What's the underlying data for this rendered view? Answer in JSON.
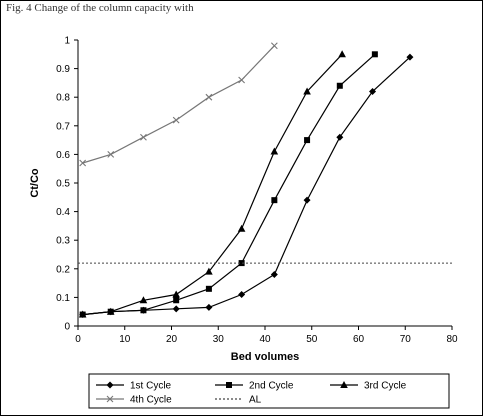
{
  "caption": "Fig. 4 Change of the column capacity with",
  "chart_data": {
    "type": "line",
    "xlabel": "Bed volumes",
    "ylabel": "Ct/Co",
    "xlim": [
      0,
      80
    ],
    "ylim": [
      0,
      1
    ],
    "x_ticks": [
      0,
      10,
      20,
      30,
      40,
      50,
      60,
      70,
      80
    ],
    "y_ticks": [
      0,
      0.1,
      0.2,
      0.3,
      0.4,
      0.5,
      0.6,
      0.7,
      0.8,
      0.9,
      1
    ],
    "grid": false,
    "legend_position": "bottom",
    "series": [
      {
        "name": "1st Cycle",
        "color": "#000000",
        "marker": "diamond",
        "line": "solid",
        "x": [
          1,
          7,
          14,
          21,
          28,
          35,
          42,
          49,
          56,
          63,
          71
        ],
        "y": [
          0.04,
          0.05,
          0.055,
          0.06,
          0.065,
          0.11,
          0.18,
          0.44,
          0.66,
          0.82,
          0.94
        ]
      },
      {
        "name": "2nd Cycle",
        "color": "#000000",
        "marker": "square",
        "line": "solid",
        "x": [
          1,
          7,
          14,
          21,
          28,
          35,
          42,
          49,
          56,
          63.5
        ],
        "y": [
          0.04,
          0.05,
          0.055,
          0.09,
          0.13,
          0.22,
          0.44,
          0.65,
          0.84,
          0.95
        ]
      },
      {
        "name": "3rd Cycle",
        "color": "#000000",
        "marker": "triangle",
        "line": "solid",
        "x": [
          1,
          7,
          14,
          21,
          28,
          35,
          42,
          49,
          56.5
        ],
        "y": [
          0.04,
          0.05,
          0.09,
          0.11,
          0.19,
          0.34,
          0.61,
          0.82,
          0.95
        ]
      },
      {
        "name": "4th Cycle",
        "color": "#777777",
        "marker": "x",
        "line": "solid",
        "x": [
          1,
          7,
          14,
          21,
          28,
          35,
          42
        ],
        "y": [
          0.57,
          0.6,
          0.66,
          0.72,
          0.8,
          0.86,
          0.98
        ]
      },
      {
        "name": "AL",
        "color": "#444444",
        "marker": "none",
        "line": "dotted",
        "x": [
          0,
          80
        ],
        "y": [
          0.22,
          0.22
        ]
      }
    ]
  }
}
